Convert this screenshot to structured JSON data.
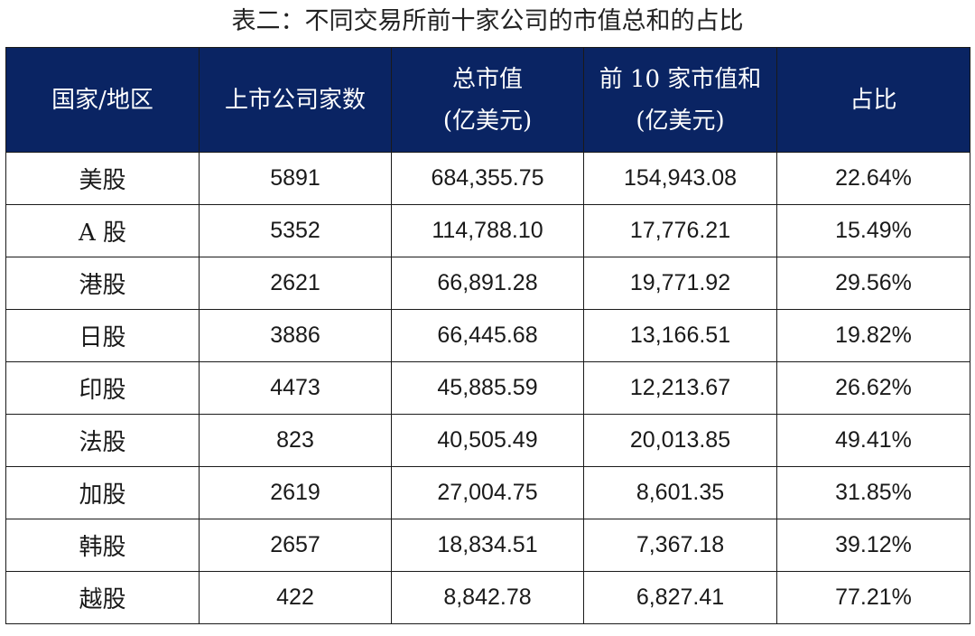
{
  "title": "表二：不同交易所前十家公司的市值总和的占比",
  "headers": [
    [
      "国家/地区"
    ],
    [
      "上市公司家数"
    ],
    [
      "总市值",
      "(亿美元)"
    ],
    [
      "前 10 家市值和",
      "(亿美元)"
    ],
    [
      "占比"
    ]
  ],
  "rows": [
    [
      "美股",
      "5891",
      "684,355.75",
      "154,943.08",
      "22.64%"
    ],
    [
      "A 股",
      "5352",
      "114,788.10",
      "17,776.21",
      "15.49%"
    ],
    [
      "港股",
      "2621",
      "66,891.28",
      "19,771.92",
      "29.56%"
    ],
    [
      "日股",
      "3886",
      "66,445.68",
      "13,166.51",
      "19.82%"
    ],
    [
      "印股",
      "4473",
      "45,885.59",
      "12,213.67",
      "26.62%"
    ],
    [
      "法股",
      "823",
      "40,505.49",
      "20,013.85",
      "49.41%"
    ],
    [
      "加股",
      "2619",
      "27,004.75",
      "8,601.35",
      "31.85%"
    ],
    [
      "韩股",
      "2657",
      "18,834.51",
      "7,367.18",
      "39.12%"
    ],
    [
      "越股",
      "422",
      "8,842.78",
      "6,827.41",
      "77.21%"
    ]
  ],
  "colors": {
    "header_bg": "#0a2463",
    "header_text": "#ffffff",
    "border": "#1a1a1a"
  }
}
